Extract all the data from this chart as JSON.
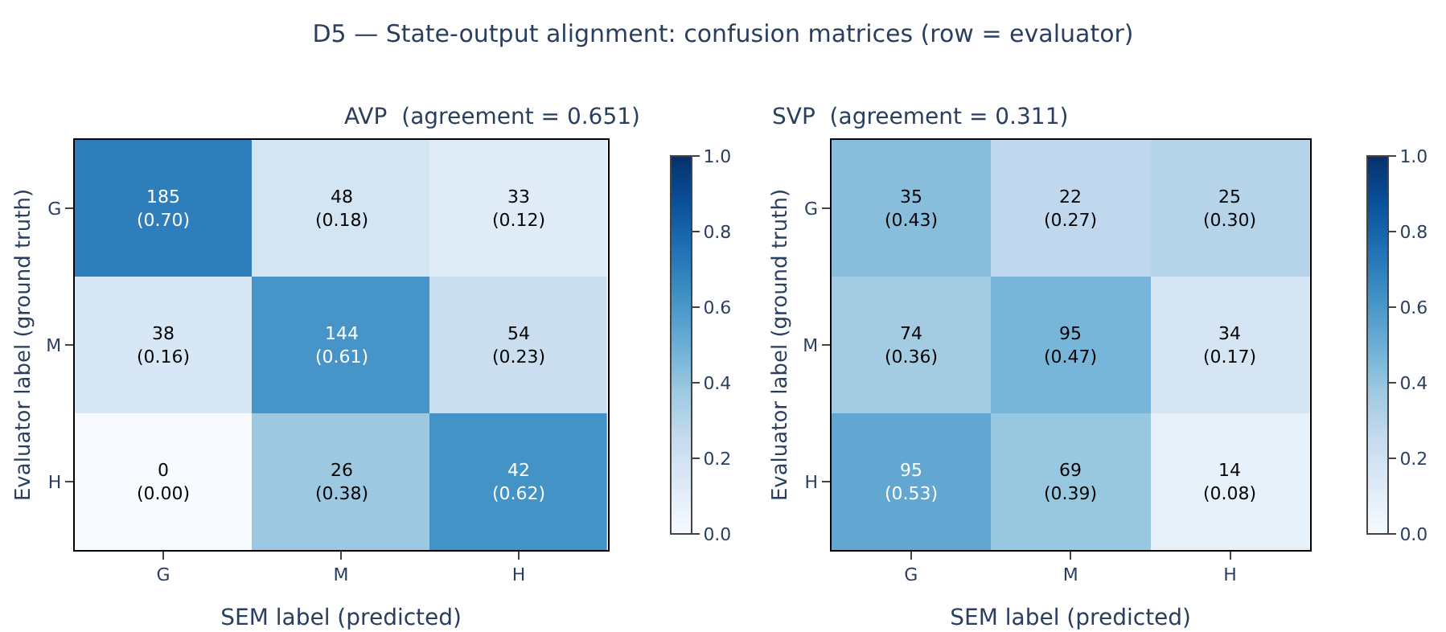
{
  "chart_data": [
    {
      "type": "heatmap",
      "title": "D5 — State-output alignment: confusion matrices (row = evaluator)",
      "subtitle": "AVP  (agreement = 0.651)",
      "xlabel": "SEM label (predicted)",
      "ylabel": "Evaluator label (ground truth)",
      "categories": [
        "G",
        "M",
        "H"
      ],
      "y_categories": [
        "G",
        "M",
        "H"
      ],
      "cells": [
        [
          0.7,
          0.18,
          0.12
        ],
        [
          0.16,
          0.61,
          0.23
        ],
        [
          0.0,
          0.38,
          0.62
        ]
      ],
      "cell_labels": [
        [
          "185\n(0.70)",
          "48\n(0.18)",
          "33\n(0.12)"
        ],
        [
          "38\n(0.16)",
          "144\n(0.61)",
          "54\n(0.23)"
        ],
        [
          "0\n(0.00)",
          "26\n(0.38)",
          "42\n(0.62)"
        ]
      ],
      "clim": [
        0,
        1
      ],
      "cticks": [
        {
          "value": 0,
          "label": "0.0"
        },
        {
          "value": 0.2,
          "label": "0.2"
        },
        {
          "value": 0.4,
          "label": "0.4"
        },
        {
          "value": 0.6,
          "label": "0.6"
        },
        {
          "value": 0.8,
          "label": "0.8"
        },
        {
          "value": 1,
          "label": "1.0"
        }
      ]
    },
    {
      "type": "heatmap",
      "subtitle": "SVP  (agreement = 0.311)",
      "xlabel": "SEM label (predicted)",
      "ylabel": "Evaluator label (ground truth)",
      "categories": [
        "G",
        "M",
        "H"
      ],
      "y_categories": [
        "G",
        "M",
        "H"
      ],
      "cells": [
        [
          0.43,
          0.27,
          0.3
        ],
        [
          0.36,
          0.47,
          0.17
        ],
        [
          0.53,
          0.39,
          0.08
        ]
      ],
      "cell_labels": [
        [
          "35\n(0.43)",
          "22\n(0.27)",
          "25\n(0.30)"
        ],
        [
          "74\n(0.36)",
          "95\n(0.47)",
          "34\n(0.17)"
        ],
        [
          "95\n(0.53)",
          "69\n(0.39)",
          "14\n(0.08)"
        ]
      ],
      "clim": [
        0,
        1
      ],
      "cticks": [
        {
          "value": 0,
          "label": "0.0"
        },
        {
          "value": 0.2,
          "label": "0.2"
        },
        {
          "value": 0.4,
          "label": "0.4"
        },
        {
          "value": 0.6,
          "label": "0.6"
        },
        {
          "value": 0.8,
          "label": "0.8"
        },
        {
          "value": 1,
          "label": "1.0"
        }
      ]
    }
  ]
}
